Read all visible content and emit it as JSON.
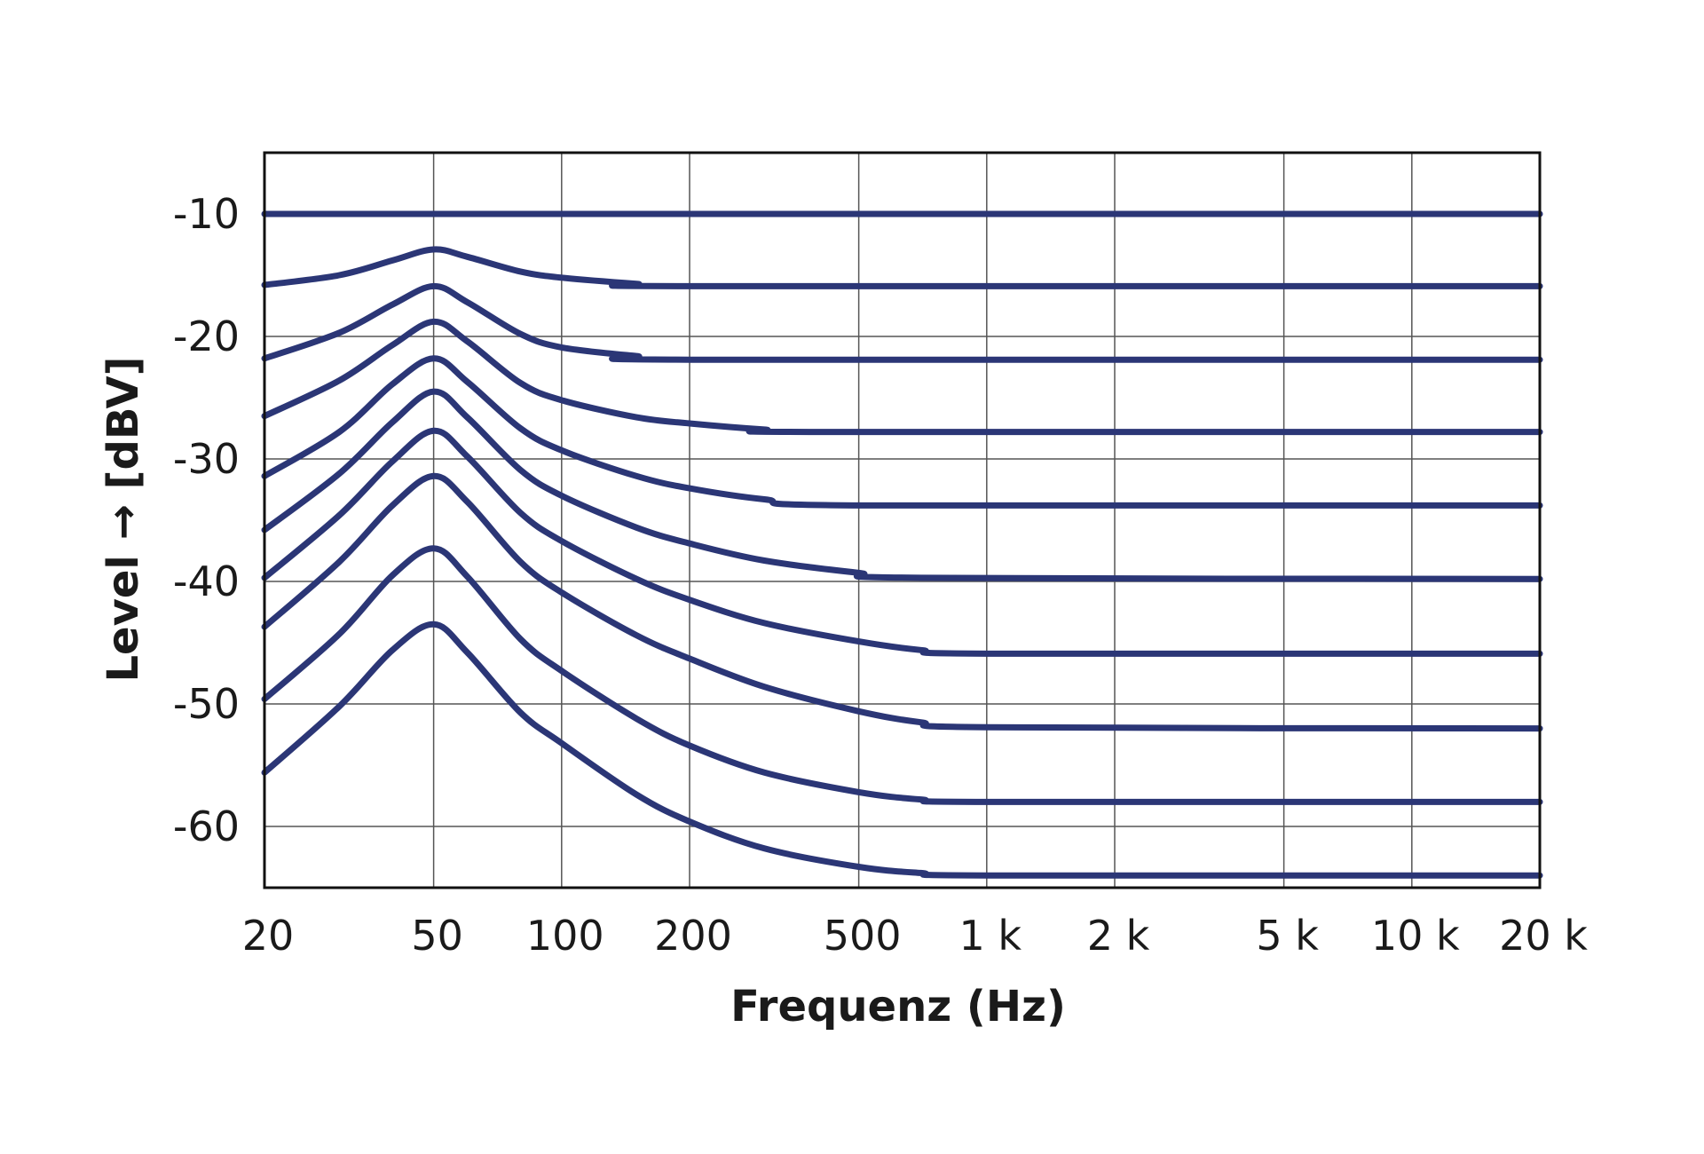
{
  "chart_data": {
    "type": "line",
    "xlabel": "Frequenz (Hz)",
    "ylabel": "Level → [dBV]",
    "xscale": "log",
    "xlim": [
      20,
      20000
    ],
    "ylim": [
      -65,
      -5
    ],
    "x_ticks": [
      {
        "value": 20,
        "label": "20"
      },
      {
        "value": 50,
        "label": "50"
      },
      {
        "value": 100,
        "label": "100"
      },
      {
        "value": 200,
        "label": "200"
      },
      {
        "value": 500,
        "label": "500"
      },
      {
        "value": 1000,
        "label": "1 k"
      },
      {
        "value": 2000,
        "label": "2 k"
      },
      {
        "value": 5000,
        "label": "5 k"
      },
      {
        "value": 10000,
        "label": "10 k"
      },
      {
        "value": 20000,
        "label": "20 k"
      }
    ],
    "y_ticks": [
      {
        "value": -10,
        "label": "-10"
      },
      {
        "value": -20,
        "label": "-20"
      },
      {
        "value": -30,
        "label": "-30"
      },
      {
        "value": -40,
        "label": "-40"
      },
      {
        "value": -50,
        "label": "-50"
      },
      {
        "value": -60,
        "label": "-60"
      }
    ],
    "grid": true,
    "line_color": "#2b3676",
    "series": [
      {
        "x": [
          20,
          50,
          20000
        ],
        "y": [
          -10,
          -10,
          -10
        ]
      },
      {
        "x": [
          20,
          30,
          40,
          50,
          60,
          80,
          100,
          150,
          200,
          20000
        ],
        "y": [
          -15.8,
          -15.0,
          -13.8,
          -12.9,
          -13.5,
          -14.7,
          -15.2,
          -15.7,
          -15.9,
          -15.9
        ]
      },
      {
        "x": [
          20,
          30,
          40,
          50,
          60,
          80,
          100,
          150,
          200,
          20000
        ],
        "y": [
          -21.8,
          -19.7,
          -17.4,
          -15.9,
          -17.2,
          -19.8,
          -20.9,
          -21.6,
          -21.9,
          -21.9
        ]
      },
      {
        "x": [
          20,
          30,
          40,
          50,
          60,
          80,
          100,
          150,
          200,
          300,
          400,
          20000
        ],
        "y": [
          -26.5,
          -23.6,
          -20.7,
          -18.8,
          -20.4,
          -23.8,
          -25.2,
          -26.6,
          -27.1,
          -27.6,
          -27.8,
          -27.8
        ]
      },
      {
        "x": [
          20,
          30,
          40,
          50,
          60,
          80,
          100,
          150,
          200,
          300,
          500,
          20000
        ],
        "y": [
          -31.4,
          -27.8,
          -23.9,
          -21.8,
          -23.7,
          -27.5,
          -29.3,
          -31.4,
          -32.4,
          -33.3,
          -33.8,
          -33.8
        ]
      },
      {
        "x": [
          20,
          30,
          40,
          50,
          60,
          80,
          100,
          150,
          200,
          300,
          500,
          700,
          20000
        ],
        "y": [
          -35.8,
          -31.2,
          -27.0,
          -24.5,
          -26.6,
          -30.9,
          -33.0,
          -35.6,
          -36.9,
          -38.3,
          -39.3,
          -39.7,
          -39.8
        ]
      },
      {
        "x": [
          20,
          30,
          40,
          50,
          60,
          80,
          100,
          150,
          200,
          300,
          500,
          700,
          1000,
          20000
        ],
        "y": [
          -39.7,
          -34.6,
          -30.2,
          -27.7,
          -29.8,
          -34.4,
          -36.7,
          -39.8,
          -41.5,
          -43.4,
          -44.9,
          -45.6,
          -45.9,
          -45.9
        ]
      },
      {
        "x": [
          20,
          30,
          40,
          50,
          60,
          80,
          100,
          150,
          200,
          300,
          500,
          700,
          1000,
          20000
        ],
        "y": [
          -43.7,
          -38.4,
          -33.8,
          -31.4,
          -33.5,
          -38.4,
          -40.9,
          -44.4,
          -46.3,
          -48.6,
          -50.6,
          -51.5,
          -51.9,
          -52.0
        ]
      },
      {
        "x": [
          20,
          30,
          40,
          50,
          60,
          80,
          100,
          150,
          200,
          300,
          500,
          700,
          1000,
          20000
        ],
        "y": [
          -49.6,
          -44.3,
          -39.5,
          -37.3,
          -39.6,
          -44.7,
          -47.3,
          -51.2,
          -53.4,
          -55.6,
          -57.2,
          -57.8,
          -58.0,
          -58.0
        ]
      },
      {
        "x": [
          20,
          30,
          40,
          50,
          60,
          80,
          100,
          150,
          200,
          300,
          500,
          700,
          1000,
          20000
        ],
        "y": [
          -55.6,
          -50.2,
          -45.6,
          -43.5,
          -45.8,
          -50.7,
          -53.2,
          -57.4,
          -59.6,
          -61.8,
          -63.3,
          -63.8,
          -64.0,
          -64.0
        ]
      }
    ]
  }
}
